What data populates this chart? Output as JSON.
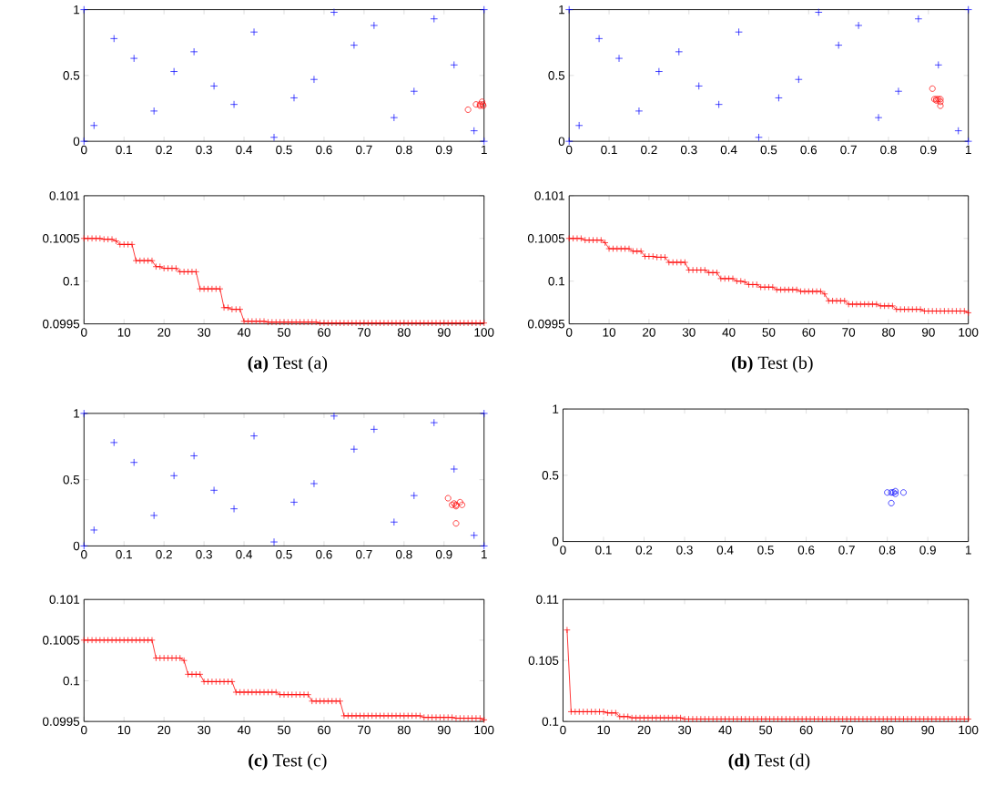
{
  "chart_data": [
    {
      "type": "scatter",
      "xlim": [
        0,
        1
      ],
      "ylim": [
        0,
        1
      ],
      "xticks": [
        0,
        0.1,
        0.2,
        0.3,
        0.4,
        0.5,
        0.6,
        0.7,
        0.8,
        0.9,
        1
      ],
      "yticks": [
        0,
        0.5,
        1
      ],
      "series": [
        {
          "color": "#0000ff",
          "marker": "cross",
          "x": [
            0,
            0,
            1,
            1,
            0.025,
            0.075,
            0.125,
            0.175,
            0.225,
            0.275,
            0.325,
            0.375,
            0.425,
            0.475,
            0.525,
            0.575,
            0.625,
            0.675,
            0.725,
            0.775,
            0.825,
            0.875,
            0.925,
            0.975
          ],
          "values": [
            0,
            1,
            0,
            1,
            0.12,
            0.78,
            0.63,
            0.23,
            0.53,
            0.68,
            0.42,
            0.28,
            0.83,
            0.03,
            0.33,
            0.47,
            0.98,
            0.73,
            0.88,
            0.18,
            0.38,
            0.93,
            0.58,
            0.08
          ]
        },
        {
          "color": "#ff0000",
          "marker": "circle",
          "x": [
            0.96,
            0.98,
            0.99,
            0.995,
            0.997,
            0.998,
            0.99
          ],
          "values": [
            0.24,
            0.28,
            0.28,
            0.3,
            0.28,
            0.27,
            0.27
          ]
        }
      ]
    },
    {
      "type": "scatter",
      "xlim": [
        0,
        1
      ],
      "ylim": [
        0,
        1
      ],
      "xticks": [
        0,
        0.1,
        0.2,
        0.3,
        0.4,
        0.5,
        0.6,
        0.7,
        0.8,
        0.9,
        1
      ],
      "yticks": [
        0,
        0.5,
        1
      ],
      "series": [
        {
          "color": "#0000ff",
          "marker": "cross",
          "x": [
            0,
            0,
            1,
            1,
            0.025,
            0.075,
            0.125,
            0.175,
            0.225,
            0.275,
            0.325,
            0.375,
            0.425,
            0.475,
            0.525,
            0.575,
            0.625,
            0.675,
            0.725,
            0.775,
            0.825,
            0.875,
            0.925,
            0.975
          ],
          "values": [
            0,
            1,
            0,
            1,
            0.12,
            0.78,
            0.63,
            0.23,
            0.53,
            0.68,
            0.42,
            0.28,
            0.83,
            0.03,
            0.33,
            0.47,
            0.98,
            0.73,
            0.88,
            0.18,
            0.38,
            0.93,
            0.58,
            0.08
          ]
        },
        {
          "color": "#ff0000",
          "marker": "circle",
          "x": [
            0.91,
            0.915,
            0.92,
            0.925,
            0.93,
            0.93,
            0.93,
            0.92
          ],
          "values": [
            0.4,
            0.32,
            0.32,
            0.32,
            0.32,
            0.3,
            0.27,
            0.31
          ]
        }
      ]
    },
    {
      "type": "line",
      "marker": "cross",
      "xlim": [
        0,
        100
      ],
      "ylim": [
        0.0995,
        0.101
      ],
      "xticks": [
        0,
        10,
        20,
        30,
        40,
        50,
        60,
        70,
        80,
        90,
        100
      ],
      "yticks": [
        0.0995,
        0.1,
        0.1005,
        0.101
      ],
      "annotations": [
        "**(a)** Test (a)"
      ],
      "x": [
        0,
        1,
        2,
        3,
        4,
        5,
        6,
        7,
        8,
        9,
        10,
        11,
        12,
        13,
        14,
        15,
        16,
        17,
        18,
        19,
        20,
        21,
        22,
        23,
        24,
        25,
        26,
        27,
        28,
        29,
        30,
        31,
        32,
        33,
        34,
        35,
        36,
        37,
        38,
        39,
        40,
        41,
        42,
        43,
        44,
        45,
        46,
        47,
        48,
        49,
        50,
        51,
        52,
        53,
        54,
        55,
        56,
        57,
        58,
        59,
        60,
        61,
        62,
        63,
        64,
        65,
        66,
        67,
        68,
        69,
        70,
        71,
        72,
        73,
        74,
        75,
        76,
        77,
        78,
        79,
        80,
        81,
        82,
        83,
        84,
        85,
        86,
        87,
        88,
        89,
        90,
        91,
        92,
        93,
        94,
        95,
        96,
        97,
        98,
        99,
        100
      ],
      "series": [
        {
          "color": "#ff0000",
          "values": [
            0.1005,
            0.1005,
            0.1005,
            0.1005,
            0.1005,
            0.10049,
            0.10049,
            0.10049,
            0.10047,
            0.10043,
            0.10043,
            0.10043,
            0.10043,
            0.10024,
            0.10024,
            0.10024,
            0.10024,
            0.10024,
            0.10017,
            0.10017,
            0.10015,
            0.10015,
            0.10015,
            0.10015,
            0.10011,
            0.10011,
            0.10011,
            0.10011,
            0.10011,
            0.09991,
            0.09991,
            0.09991,
            0.09991,
            0.09991,
            0.09991,
            0.09969,
            0.09969,
            0.09967,
            0.09967,
            0.09967,
            0.09953,
            0.09953,
            0.09953,
            0.09953,
            0.09953,
            0.09953,
            0.09952,
            0.09952,
            0.09952,
            0.09952,
            0.09952,
            0.09952,
            0.09952,
            0.09952,
            0.09952,
            0.09952,
            0.09952,
            0.09952,
            0.09952,
            0.09951,
            0.09951,
            0.09951,
            0.09951,
            0.09951,
            0.09951,
            0.09951,
            0.09951,
            0.09951,
            0.09951,
            0.09951,
            0.09951,
            0.09951,
            0.09951,
            0.09951,
            0.09951,
            0.09951,
            0.09951,
            0.09951,
            0.09951,
            0.09951,
            0.09951,
            0.09951,
            0.09951,
            0.09951,
            0.09951,
            0.09951,
            0.09951,
            0.09951,
            0.09951,
            0.09951,
            0.09951,
            0.09951,
            0.09951,
            0.09951,
            0.09951,
            0.09951,
            0.09951,
            0.09951,
            0.09951,
            0.09951,
            0.09951
          ]
        }
      ]
    },
    {
      "type": "line",
      "marker": "cross",
      "xlim": [
        0,
        100
      ],
      "ylim": [
        0.0995,
        0.101
      ],
      "xticks": [
        0,
        10,
        20,
        30,
        40,
        50,
        60,
        70,
        80,
        90,
        100
      ],
      "yticks": [
        0.0995,
        0.1,
        0.1005,
        0.101
      ],
      "annotations": [
        "**(b)** Test (b)"
      ],
      "x": [
        0,
        1,
        2,
        3,
        4,
        5,
        6,
        7,
        8,
        9,
        10,
        11,
        12,
        13,
        14,
        15,
        16,
        17,
        18,
        19,
        20,
        21,
        22,
        23,
        24,
        25,
        26,
        27,
        28,
        29,
        30,
        31,
        32,
        33,
        34,
        35,
        36,
        37,
        38,
        39,
        40,
        41,
        42,
        43,
        44,
        45,
        46,
        47,
        48,
        49,
        50,
        51,
        52,
        53,
        54,
        55,
        56,
        57,
        58,
        59,
        60,
        61,
        62,
        63,
        64,
        65,
        66,
        67,
        68,
        69,
        70,
        71,
        72,
        73,
        74,
        75,
        76,
        77,
        78,
        79,
        80,
        81,
        82,
        83,
        84,
        85,
        86,
        87,
        88,
        89,
        90,
        91,
        92,
        93,
        94,
        95,
        96,
        97,
        98,
        99,
        100
      ],
      "series": [
        {
          "color": "#ff0000",
          "values": [
            0.1005,
            0.1005,
            0.1005,
            0.1005,
            0.10048,
            0.10048,
            0.10048,
            0.10048,
            0.10048,
            0.10045,
            0.10038,
            0.10038,
            0.10038,
            0.10038,
            0.10038,
            0.10038,
            0.10035,
            0.10035,
            0.10035,
            0.10029,
            0.10029,
            0.10029,
            0.10028,
            0.10028,
            0.10028,
            0.10022,
            0.10022,
            0.10022,
            0.10022,
            0.10022,
            0.10013,
            0.10013,
            0.10013,
            0.10013,
            0.10013,
            0.1001,
            0.1001,
            0.1001,
            0.10003,
            0.10003,
            0.10003,
            0.10003,
            0.1,
            0.1,
            0.09999,
            0.09996,
            0.09996,
            0.09996,
            0.09993,
            0.09993,
            0.09993,
            0.09993,
            0.0999,
            0.0999,
            0.0999,
            0.0999,
            0.0999,
            0.0999,
            0.09988,
            0.09988,
            0.09988,
            0.09988,
            0.09988,
            0.09988,
            0.09985,
            0.09977,
            0.09977,
            0.09977,
            0.09977,
            0.09977,
            0.09973,
            0.09973,
            0.09973,
            0.09973,
            0.09973,
            0.09973,
            0.09973,
            0.09973,
            0.09971,
            0.09971,
            0.09971,
            0.09971,
            0.09967,
            0.09967,
            0.09967,
            0.09967,
            0.09967,
            0.09967,
            0.09967,
            0.09965,
            0.09965,
            0.09965,
            0.09965,
            0.09965,
            0.09965,
            0.09965,
            0.09965,
            0.09965,
            0.09965,
            0.09965,
            0.09963
          ]
        }
      ]
    },
    {
      "type": "scatter",
      "xlim": [
        0,
        1
      ],
      "ylim": [
        0,
        1
      ],
      "xticks": [
        0,
        0.1,
        0.2,
        0.3,
        0.4,
        0.5,
        0.6,
        0.7,
        0.8,
        0.9,
        1
      ],
      "yticks": [
        0,
        0.5,
        1
      ],
      "series": [
        {
          "color": "#0000ff",
          "marker": "cross",
          "x": [
            0,
            0,
            1,
            1,
            0.025,
            0.075,
            0.125,
            0.175,
            0.225,
            0.275,
            0.325,
            0.375,
            0.425,
            0.475,
            0.525,
            0.575,
            0.625,
            0.675,
            0.725,
            0.775,
            0.825,
            0.875,
            0.925,
            0.975
          ],
          "values": [
            0,
            1,
            0,
            1,
            0.12,
            0.78,
            0.63,
            0.23,
            0.53,
            0.68,
            0.42,
            0.28,
            0.83,
            0.03,
            0.33,
            0.47,
            0.98,
            0.73,
            0.88,
            0.18,
            0.38,
            0.93,
            0.58,
            0.08
          ]
        },
        {
          "color": "#ff0000",
          "marker": "circle",
          "x": [
            0.91,
            0.92,
            0.93,
            0.93,
            0.94,
            0.945,
            0.93,
            0.925
          ],
          "values": [
            0.36,
            0.31,
            0.31,
            0.3,
            0.33,
            0.31,
            0.17,
            0.32
          ]
        }
      ]
    },
    {
      "type": "scatter",
      "xlim": [
        0,
        1
      ],
      "ylim": [
        0,
        1
      ],
      "xticks": [
        0,
        0.1,
        0.2,
        0.3,
        0.4,
        0.5,
        0.6,
        0.7,
        0.8,
        0.9,
        1
      ],
      "yticks": [
        0,
        0.5,
        1
      ],
      "series": [
        {
          "color": "#0000ff",
          "marker": "circle",
          "x": [
            0.8,
            0.81,
            0.815,
            0.82,
            0.82,
            0.84,
            0.81
          ],
          "values": [
            0.37,
            0.37,
            0.37,
            0.38,
            0.36,
            0.37,
            0.29
          ]
        }
      ]
    },
    {
      "type": "line",
      "marker": "cross",
      "xlim": [
        0,
        100
      ],
      "ylim": [
        0.0995,
        0.101
      ],
      "xticks": [
        0,
        10,
        20,
        30,
        40,
        50,
        60,
        70,
        80,
        90,
        100
      ],
      "yticks": [
        0.0995,
        0.1,
        0.1005,
        0.101
      ],
      "annotations": [
        "**(c)** Test (c)"
      ],
      "x": [
        0,
        1,
        2,
        3,
        4,
        5,
        6,
        7,
        8,
        9,
        10,
        11,
        12,
        13,
        14,
        15,
        16,
        17,
        18,
        19,
        20,
        21,
        22,
        23,
        24,
        25,
        26,
        27,
        28,
        29,
        30,
        31,
        32,
        33,
        34,
        35,
        36,
        37,
        38,
        39,
        40,
        41,
        42,
        43,
        44,
        45,
        46,
        47,
        48,
        49,
        50,
        51,
        52,
        53,
        54,
        55,
        56,
        57,
        58,
        59,
        60,
        61,
        62,
        63,
        64,
        65,
        66,
        67,
        68,
        69,
        70,
        71,
        72,
        73,
        74,
        75,
        76,
        77,
        78,
        79,
        80,
        81,
        82,
        83,
        84,
        85,
        86,
        87,
        88,
        89,
        90,
        91,
        92,
        93,
        94,
        95,
        96,
        97,
        98,
        99,
        100
      ],
      "series": [
        {
          "color": "#ff0000",
          "values": [
            0.1005,
            0.1005,
            0.1005,
            0.1005,
            0.1005,
            0.1005,
            0.1005,
            0.1005,
            0.1005,
            0.1005,
            0.1005,
            0.1005,
            0.1005,
            0.1005,
            0.1005,
            0.1005,
            0.1005,
            0.1005,
            0.10028,
            0.10028,
            0.10028,
            0.10028,
            0.10028,
            0.10028,
            0.10028,
            0.10025,
            0.10008,
            0.10008,
            0.10008,
            0.10008,
            0.09999,
            0.09999,
            0.09999,
            0.09999,
            0.09999,
            0.09999,
            0.09999,
            0.09999,
            0.09986,
            0.09986,
            0.09986,
            0.09986,
            0.09986,
            0.09986,
            0.09986,
            0.09986,
            0.09986,
            0.09986,
            0.09986,
            0.09983,
            0.09983,
            0.09983,
            0.09983,
            0.09983,
            0.09983,
            0.09983,
            0.09983,
            0.09975,
            0.09975,
            0.09975,
            0.09975,
            0.09975,
            0.09975,
            0.09975,
            0.09975,
            0.09957,
            0.09957,
            0.09957,
            0.09957,
            0.09957,
            0.09957,
            0.09957,
            0.09957,
            0.09957,
            0.09957,
            0.09957,
            0.09957,
            0.09957,
            0.09957,
            0.09957,
            0.09957,
            0.09957,
            0.09957,
            0.09957,
            0.09957,
            0.09955,
            0.09955,
            0.09955,
            0.09955,
            0.09955,
            0.09955,
            0.09955,
            0.09955,
            0.09954,
            0.09954,
            0.09954,
            0.09954,
            0.09954,
            0.09954,
            0.09954,
            0.09952
          ]
        }
      ]
    },
    {
      "type": "line",
      "marker": "cross",
      "xlim": [
        0,
        100
      ],
      "ylim": [
        0.1,
        0.11
      ],
      "xticks": [
        0,
        10,
        20,
        30,
        40,
        50,
        60,
        70,
        80,
        90,
        100
      ],
      "yticks": [
        0.1,
        0.105,
        0.11
      ],
      "annotations": [
        "**(d)** Test (d)"
      ],
      "x": [
        1,
        2,
        3,
        4,
        5,
        6,
        7,
        8,
        9,
        10,
        11,
        12,
        13,
        14,
        15,
        16,
        17,
        18,
        19,
        20,
        21,
        22,
        23,
        24,
        25,
        26,
        27,
        28,
        29,
        30,
        31,
        32,
        33,
        34,
        35,
        36,
        37,
        38,
        39,
        40,
        41,
        42,
        43,
        44,
        45,
        46,
        47,
        48,
        49,
        50,
        51,
        52,
        53,
        54,
        55,
        56,
        57,
        58,
        59,
        60,
        61,
        62,
        63,
        64,
        65,
        66,
        67,
        68,
        69,
        70,
        71,
        72,
        73,
        74,
        75,
        76,
        77,
        78,
        79,
        80,
        81,
        82,
        83,
        84,
        85,
        86,
        87,
        88,
        89,
        90,
        91,
        92,
        93,
        94,
        95,
        96,
        97,
        98,
        99,
        100
      ],
      "series": [
        {
          "color": "#ff0000",
          "values": [
            0.1075,
            0.1008,
            0.1008,
            0.1008,
            0.1008,
            0.1008,
            0.1008,
            0.1008,
            0.1008,
            0.1008,
            0.1007,
            0.1007,
            0.1007,
            0.1004,
            0.1004,
            0.1004,
            0.1003,
            0.1003,
            0.1003,
            0.1003,
            0.1003,
            0.1003,
            0.1003,
            0.1003,
            0.1003,
            0.1003,
            0.1003,
            0.1003,
            0.1003,
            0.1002,
            0.1002,
            0.1002,
            0.1002,
            0.1002,
            0.1002,
            0.1002,
            0.1002,
            0.1002,
            0.1002,
            0.1002,
            0.1002,
            0.1002,
            0.1002,
            0.1002,
            0.1002,
            0.1002,
            0.1002,
            0.1002,
            0.1002,
            0.1002,
            0.1002,
            0.1002,
            0.1002,
            0.1002,
            0.1002,
            0.1002,
            0.1002,
            0.1002,
            0.1002,
            0.1002,
            0.1002,
            0.1002,
            0.1002,
            0.1002,
            0.1002,
            0.1002,
            0.1002,
            0.1002,
            0.1002,
            0.1002,
            0.1002,
            0.1002,
            0.1002,
            0.1002,
            0.1002,
            0.1002,
            0.1002,
            0.1002,
            0.1002,
            0.1002,
            0.1002,
            0.1002,
            0.1002,
            0.1002,
            0.1002,
            0.1002,
            0.1002,
            0.1002,
            0.1002,
            0.1002,
            0.1002,
            0.1002,
            0.1002,
            0.1002,
            0.1002,
            0.1002,
            0.1002,
            0.1002,
            0.1002,
            0.1002
          ]
        }
      ]
    }
  ]
}
